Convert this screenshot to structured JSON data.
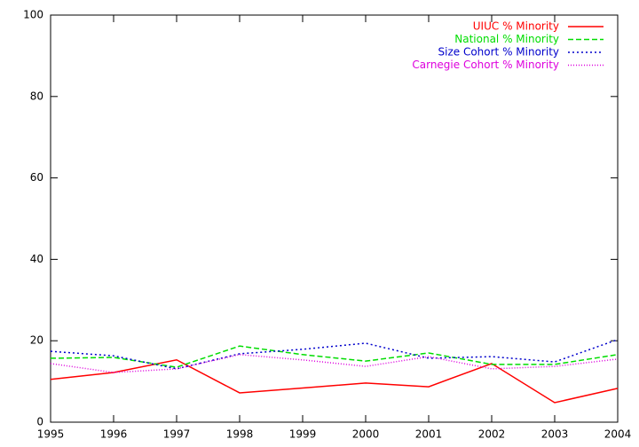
{
  "chart_data": {
    "type": "line",
    "x": [
      1995,
      1996,
      1997,
      1998,
      1999,
      2000,
      2001,
      2002,
      2003,
      2004
    ],
    "xlim": [
      1995,
      2004
    ],
    "xticks": [
      1995,
      1996,
      1997,
      1998,
      1999,
      2000,
      2001,
      2002,
      2003,
      2004
    ],
    "ylim": [
      0,
      100
    ],
    "yticks": [
      0,
      20,
      40,
      60,
      80,
      100
    ],
    "grid": false,
    "legend": "top-right",
    "series": [
      {
        "name": "UIUC % Minority",
        "color": "#ff0000",
        "dash": "solid",
        "values": [
          10.5,
          12.2,
          15.3,
          7.2,
          8.4,
          9.6,
          8.7,
          14.4,
          4.8,
          8.3
        ]
      },
      {
        "name": "National % Minority",
        "color": "#00dd00",
        "dash": "dashed",
        "values": [
          15.7,
          15.9,
          13.5,
          18.7,
          16.6,
          15.0,
          17.0,
          14.2,
          14.2,
          16.6
        ]
      },
      {
        "name": "Size Cohort % Minority",
        "color": "#0000cc",
        "dash": "dotted",
        "values": [
          17.4,
          16.3,
          13.1,
          16.8,
          17.9,
          19.4,
          15.7,
          16.1,
          14.8,
          20.3
        ]
      },
      {
        "name": "Carnegie Cohort % Minority",
        "color": "#dd00dd",
        "dash": "fine-dotted",
        "values": [
          14.4,
          12.2,
          13.1,
          16.6,
          15.3,
          13.7,
          16.1,
          13.1,
          13.7,
          15.5
        ]
      }
    ]
  }
}
